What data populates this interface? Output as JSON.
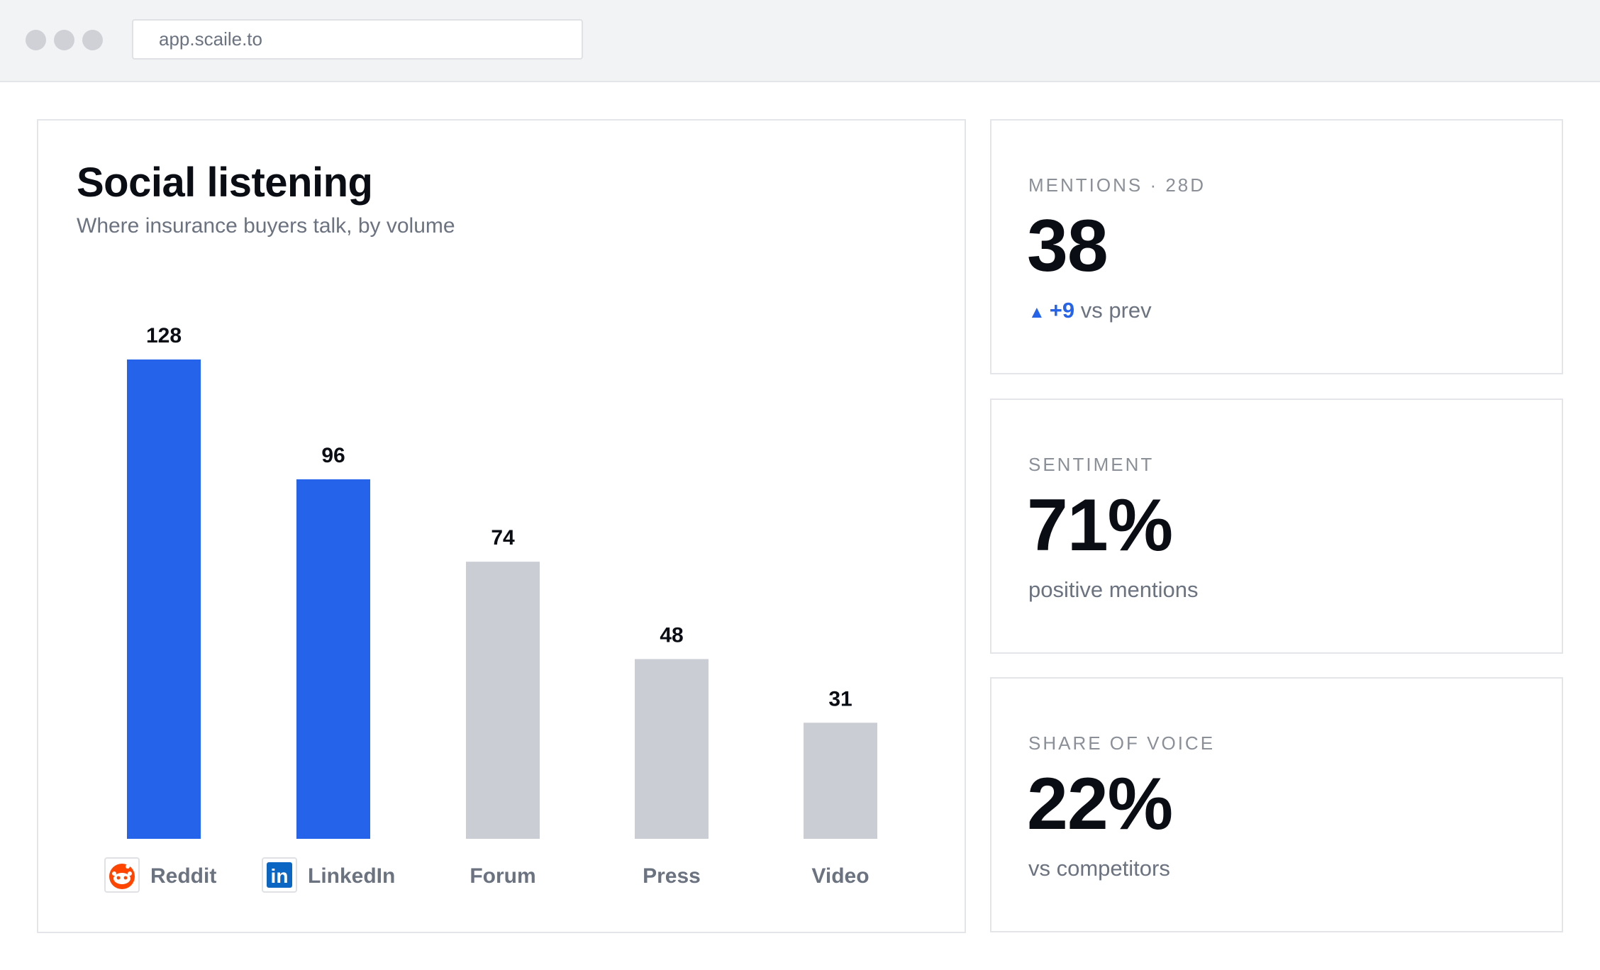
{
  "browser": {
    "url": "app.scaile.to"
  },
  "chart": {
    "title": "Social listening",
    "subtitle": "Where insurance buyers talk, by volume"
  },
  "chart_data": {
    "type": "bar",
    "title": "Social listening",
    "subtitle": "Where insurance buyers talk, by volume",
    "categories": [
      "Reddit",
      "LinkedIn",
      "Forum",
      "Press",
      "Video"
    ],
    "values": [
      128,
      96,
      74,
      48,
      31
    ],
    "category_icons": [
      "reddit-icon",
      "linkedin-icon",
      "",
      "",
      ""
    ],
    "colors": [
      "#2563eb",
      "#2563eb",
      "#cacdd3",
      "#cacdd3",
      "#cacdd3"
    ],
    "xlabel": "",
    "ylabel": "",
    "grid": false,
    "data_labels": true
  },
  "stats": [
    {
      "label": "MENTIONS · 28D",
      "value": "38",
      "delta_icon": "triangle-up-icon",
      "delta": "+9",
      "delta_suffix": "vs prev",
      "delta_color": "#2563eb"
    },
    {
      "label": "SENTIMENT",
      "value": "71%",
      "footnote": "positive mentions"
    },
    {
      "label": "SHARE OF VOICE",
      "value": "22%",
      "footnote": "vs competitors"
    }
  ]
}
